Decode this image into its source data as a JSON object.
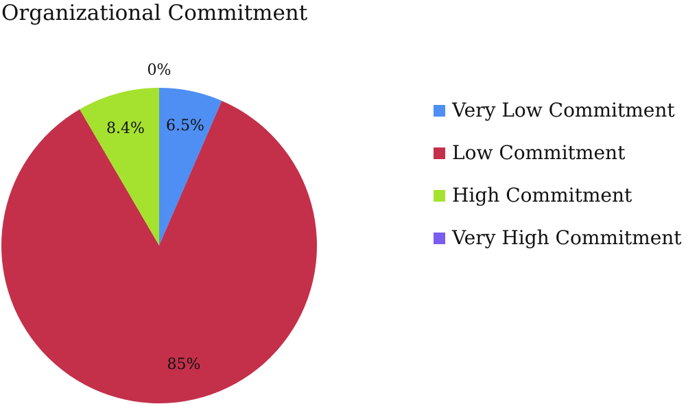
{
  "chart_data": {
    "type": "pie",
    "title": "Organizational Commitment",
    "legend_position": "right",
    "slices": [
      {
        "name": "Very Low Commitment",
        "value": 6.5,
        "label": "6.5%",
        "color": "#4f8ff3"
      },
      {
        "name": "Low Commitment",
        "value": 85,
        "label": "85%",
        "color": "#c4304a"
      },
      {
        "name": "High Commitment",
        "value": 8.4,
        "label": "8.4%",
        "color": "#a5e22f"
      },
      {
        "name": "Very High Commitment",
        "value": 0,
        "label": "0%",
        "color": "#7b5cf0"
      }
    ]
  }
}
